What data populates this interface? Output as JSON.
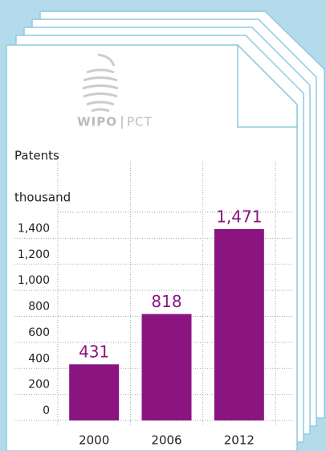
{
  "logo": {
    "left": "WIPO",
    "right": "PCT"
  },
  "chart_data": {
    "type": "bar",
    "title": "Patents",
    "y_label": "thousand",
    "categories": [
      "2000",
      "2006",
      "2012"
    ],
    "values": [
      431,
      818,
      1471
    ],
    "value_labels": [
      "431",
      "818",
      "1,471"
    ],
    "color": "#8a1580",
    "ylim": [
      0,
      1600
    ],
    "yticks": [
      0,
      200,
      400,
      600,
      800,
      {
        "value": 1000,
        "label": "1,000"
      },
      {
        "value": 1200,
        "label": "1,200"
      },
      {
        "value": 1400,
        "label": "1,400"
      }
    ],
    "grid": true
  }
}
